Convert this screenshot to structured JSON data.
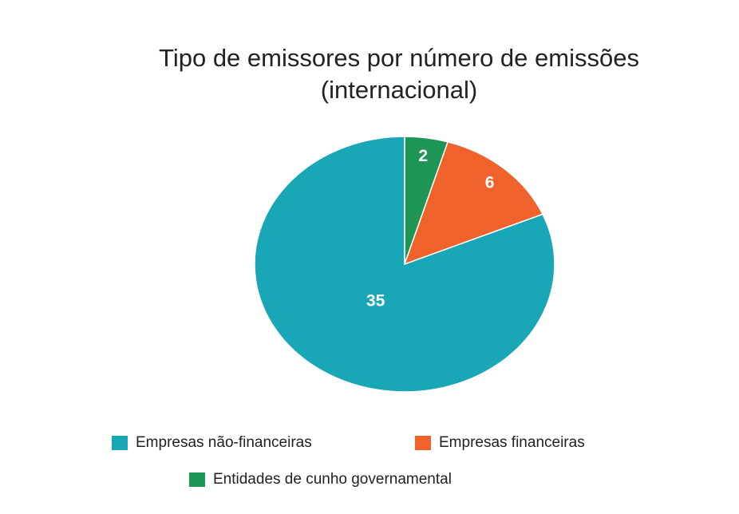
{
  "chart_data": {
    "type": "pie",
    "title": [
      "Tipo de emissores por número de emissões",
      "(internacional)"
    ],
    "categories": [
      "Entidades de cunho governamental",
      "Empresas financeiras",
      "Empresas não-financeiras"
    ],
    "values": [
      2,
      6,
      35
    ],
    "colors": [
      "#1f9555",
      "#f0622b",
      "#19a6b7"
    ],
    "legend": "bottom"
  }
}
